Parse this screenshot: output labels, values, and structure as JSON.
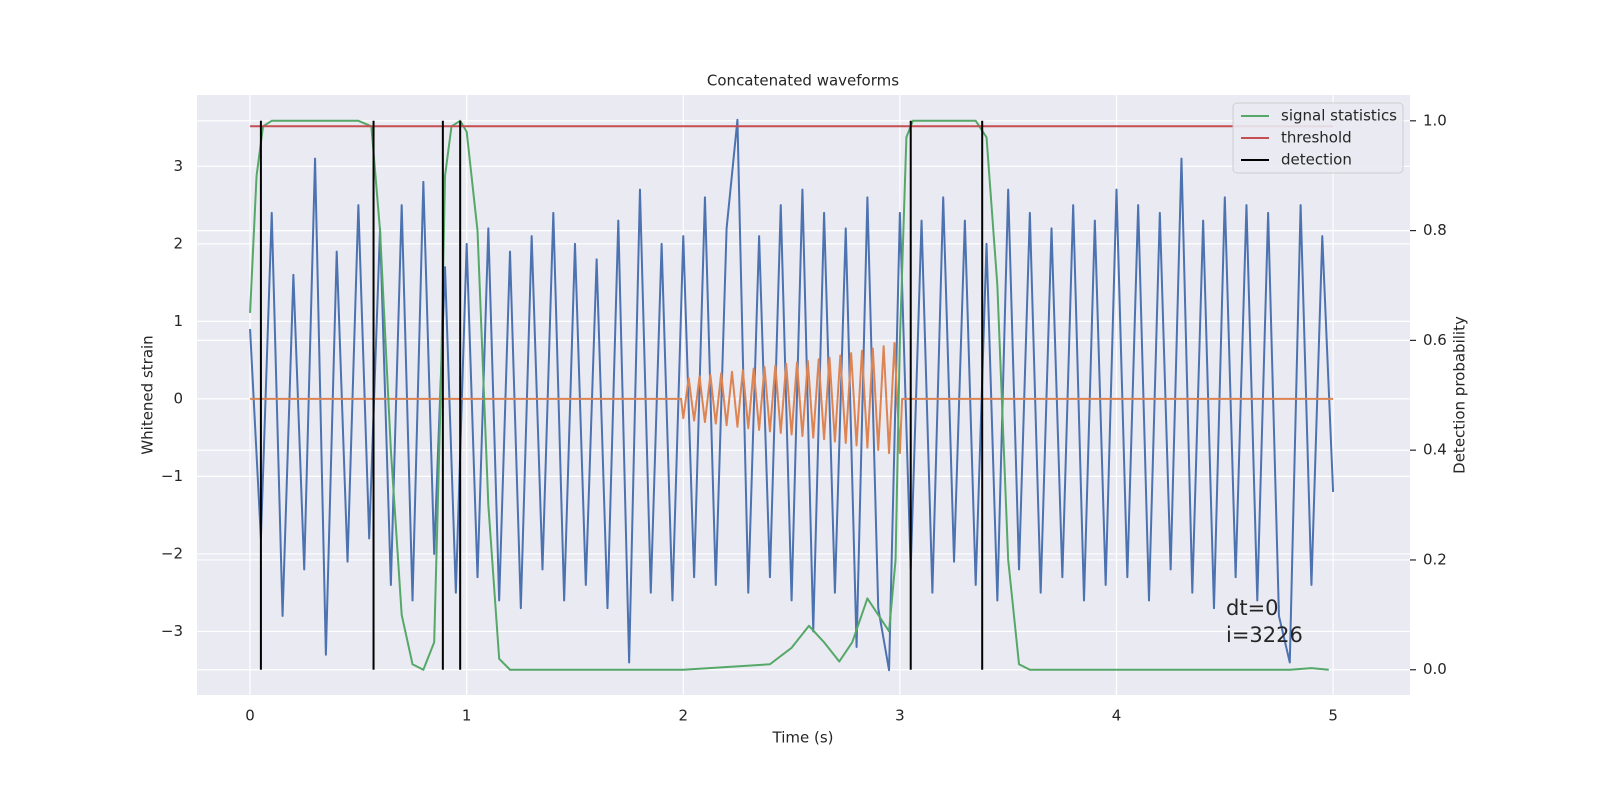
{
  "chart_data": {
    "type": "line",
    "title": "Concatenated waveforms",
    "xlabel": "Time (s)",
    "ylabel": "Whitened strain",
    "y2label": "Detection probability",
    "xlim": [
      -0.245,
      5.355
    ],
    "ylim": [
      -3.82,
      3.92
    ],
    "y2lim": [
      -0.046,
      1.047
    ],
    "xticks": [
      0,
      1,
      2,
      3,
      4,
      5
    ],
    "yticks": [
      {
        "value": -3,
        "label": "−3"
      },
      {
        "value": -2,
        "label": "−2"
      },
      {
        "value": -1,
        "label": "−1"
      },
      0,
      1,
      2,
      3
    ],
    "y2ticks": [
      {
        "value": 0,
        "label": "0.0"
      },
      0.2,
      0.4,
      0.6,
      0.8,
      {
        "value": 1,
        "label": "1.0"
      }
    ],
    "grid": true,
    "legend": "upper right",
    "annotation": [
      "dt=0",
      "i=3226"
    ],
    "series": [
      {
        "color": "#4c72b0",
        "x": [
          0,
          0.05,
          0.1,
          0.15,
          0.2,
          0.25,
          0.3,
          0.35,
          0.4,
          0.45,
          0.5,
          0.55,
          0.6,
          0.65,
          0.7,
          0.75,
          0.8,
          0.85,
          0.9,
          0.95,
          1,
          1.05,
          1.1,
          1.15,
          1.2,
          1.25,
          1.3,
          1.35,
          1.4,
          1.45,
          1.5,
          1.55,
          1.6,
          1.65,
          1.7,
          1.75,
          1.8,
          1.85,
          1.9,
          1.95,
          2,
          2.05,
          2.1,
          2.15,
          2.2,
          2.25,
          2.3,
          2.35,
          2.4,
          2.45,
          2.5,
          2.55,
          2.6,
          2.65,
          2.7,
          2.75,
          2.8,
          2.85,
          2.9,
          2.95,
          3,
          3.05,
          3.1,
          3.15,
          3.2,
          3.25,
          3.3,
          3.35,
          3.4,
          3.45,
          3.5,
          3.55,
          3.6,
          3.65,
          3.7,
          3.75,
          3.8,
          3.85,
          3.9,
          3.95,
          4,
          4.05,
          4.1,
          4.15,
          4.2,
          4.25,
          4.3,
          4.35,
          4.4,
          4.45,
          4.5,
          4.55,
          4.6,
          4.65,
          4.7,
          4.75,
          4.8,
          4.85,
          4.9,
          4.95,
          5
        ],
        "values": [
          0.9,
          -1.8,
          2.4,
          -2.8,
          1.6,
          -2.2,
          3.1,
          -3.3,
          1.9,
          -2.1,
          2.5,
          -1.8,
          2.2,
          -2.4,
          2.5,
          -2.6,
          2.8,
          -2.0,
          1.7,
          -2.5,
          2.0,
          -2.3,
          2.2,
          -2.6,
          1.9,
          -2.7,
          2.1,
          -2.2,
          2.4,
          -2.6,
          2.0,
          -2.4,
          1.8,
          -2.7,
          2.3,
          -3.4,
          2.7,
          -2.5,
          2.0,
          -2.6,
          2.1,
          -2.3,
          2.6,
          -2.4,
          2.2,
          3.6,
          -2.5,
          2.1,
          -2.3,
          2.5,
          -2.6,
          2.7,
          -3.0,
          2.4,
          -2.5,
          2.2,
          -3.2,
          2.6,
          -2.7,
          -3.5,
          2.4,
          -2.2,
          2.3,
          -2.5,
          2.6,
          -2.1,
          2.3,
          -2.4,
          2.0,
          -2.6,
          2.7,
          -2.2,
          2.4,
          -2.5,
          2.2,
          -2.3,
          2.5,
          -2.6,
          2.3,
          -2.4,
          2.7,
          -2.3,
          2.5,
          -2.6,
          2.4,
          -2.2,
          3.1,
          -2.5,
          2.3,
          -2.7,
          2.6,
          -2.3,
          2.5,
          -2.6,
          2.4,
          -2.8,
          -3.4,
          2.5,
          -2.4,
          2.1,
          -1.2
        ]
      },
      {
        "color": "#dd8452",
        "x": [
          0,
          1.99,
          2,
          2.025,
          2.05,
          2.075,
          2.1,
          2.125,
          2.15,
          2.175,
          2.2,
          2.225,
          2.25,
          2.275,
          2.3,
          2.325,
          2.35,
          2.375,
          2.4,
          2.425,
          2.45,
          2.475,
          2.5,
          2.525,
          2.55,
          2.575,
          2.6,
          2.625,
          2.65,
          2.675,
          2.7,
          2.725,
          2.75,
          2.775,
          2.8,
          2.825,
          2.85,
          2.875,
          2.9,
          2.925,
          2.95,
          2.975,
          3,
          3.01,
          5
        ],
        "values": [
          0,
          0,
          -0.25,
          0.27,
          -0.28,
          0.29,
          -0.3,
          0.31,
          -0.32,
          0.33,
          -0.34,
          0.35,
          -0.36,
          0.37,
          -0.38,
          0.39,
          -0.4,
          0.41,
          -0.42,
          0.43,
          -0.44,
          0.45,
          -0.46,
          0.47,
          -0.48,
          0.49,
          -0.5,
          0.51,
          -0.52,
          0.53,
          -0.55,
          0.56,
          -0.57,
          0.59,
          -0.6,
          0.62,
          -0.63,
          0.65,
          -0.66,
          0.68,
          -0.7,
          0.72,
          -0.7,
          0,
          0
        ]
      },
      {
        "name": "signal statistics",
        "color": "#55a868",
        "axis": "y2",
        "x": [
          0,
          0.03,
          0.06,
          0.1,
          0.5,
          0.56,
          0.6,
          0.65,
          0.7,
          0.75,
          0.8,
          0.85,
          0.88,
          0.9,
          0.93,
          0.97,
          1,
          1.05,
          1.1,
          1.15,
          1.2,
          2,
          2.4,
          2.5,
          2.58,
          2.65,
          2.72,
          2.78,
          2.85,
          2.9,
          2.95,
          2.98,
          3,
          3.03,
          3.06,
          3.35,
          3.4,
          3.45,
          3.5,
          3.55,
          3.6,
          4.8,
          4.9,
          4.98
        ],
        "values": [
          0.65,
          0.9,
          0.99,
          1,
          1,
          0.99,
          0.8,
          0.4,
          0.1,
          0.01,
          0,
          0.05,
          0.5,
          0.9,
          0.99,
          1,
          0.98,
          0.8,
          0.3,
          0.02,
          0,
          0,
          0.01,
          0.04,
          0.08,
          0.05,
          0.015,
          0.05,
          0.13,
          0.1,
          0.07,
          0.2,
          0.6,
          0.97,
          1,
          1,
          0.97,
          0.7,
          0.2,
          0.01,
          0,
          0,
          0.003,
          0
        ]
      },
      {
        "name": "threshold",
        "color": "#c44e52",
        "axis": "y2",
        "x": [
          0,
          5
        ],
        "values": [
          0.99,
          0.99
        ]
      },
      {
        "name": "detection",
        "color": "#000000",
        "axis": "y2",
        "vlines": true,
        "x": [
          0.05,
          0.57,
          0.89,
          0.97,
          3.05,
          3.38
        ],
        "span": [
          0,
          1
        ]
      }
    ]
  }
}
